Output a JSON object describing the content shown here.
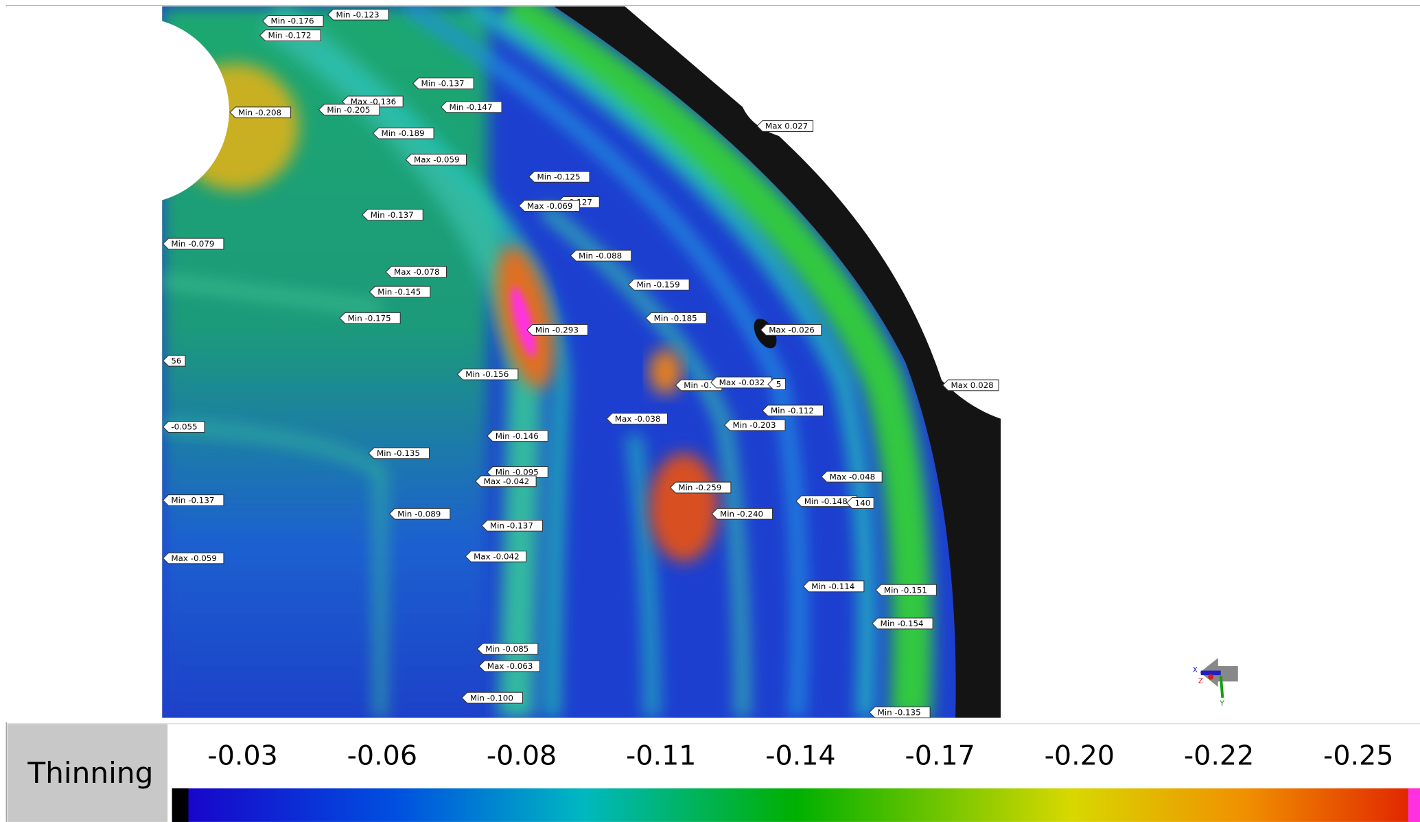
{
  "legend": {
    "title": "Thinning",
    "ticks": [
      "-0.03",
      "-0.06",
      "-0.08",
      "-0.11",
      "-0.14",
      "-0.17",
      "-0.20",
      "-0.22",
      "-0.25"
    ]
  },
  "triad": {
    "x": "X",
    "y": "Y",
    "z": "Z"
  },
  "labels": [
    "Min -0.176",
    "Min -0.123",
    "Min -0.172",
    "Min -0.137",
    "Max -0.136",
    "Min -0.208",
    "Min -0.205",
    "Min -0.147",
    "Max 0.027",
    "Min -0.189",
    "Max -0.059",
    "Min -0.125",
    "-0.127",
    "Max -0.069",
    "Min -0.137",
    "Min -0.079",
    "Min -0.088",
    "Max -0.078",
    "Min -0.159",
    "Min -0.145",
    "Min -0.175",
    "Min -0.185",
    "Min -0.293",
    "Max -0.026",
    "56",
    "Min -0.156",
    "Min -0.",
    "Max -0.032",
    "5",
    "Max 0.028",
    "Min -0.112",
    "Max -0.038",
    "Min -0.203",
    "-0.055",
    "Min -0.146",
    "Min -0.135",
    "Min -0.095",
    "Max -0.042",
    "Max -0.048",
    "Min -0.259",
    "Min -0.148",
    "140",
    "Min -0.137",
    "Min -0.089",
    "Min -0.240",
    "Min -0.137",
    "Max -0.042",
    "Max -0.059",
    "Min -0.114",
    "Min -0.151",
    "Min -0.154",
    "Min -0.085",
    "Max -0.063",
    "Min -0.100",
    "Min -0.135"
  ]
}
